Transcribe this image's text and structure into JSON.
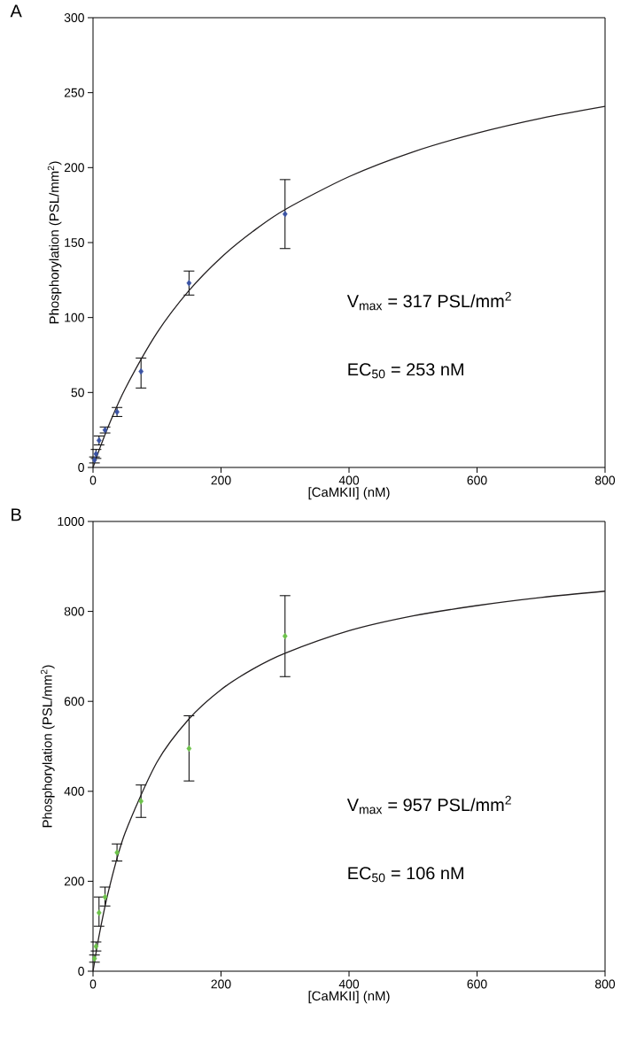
{
  "chart_data": [
    {
      "type": "scatter",
      "title": "A",
      "xlabel": "[CaMKII] (nM)",
      "ylabel": "Phosphorylation (PSL/mm$^{2}$)",
      "xlim": [
        0,
        800
      ],
      "ylim": [
        0,
        300
      ],
      "xticks": [
        0,
        200,
        400,
        600,
        800
      ],
      "yticks": [
        0,
        50,
        100,
        150,
        200,
        250,
        300
      ],
      "grid": false,
      "annotations": [
        "V$_{max}$ = 317 PSL/mm$^{2}$",
        "EC$_{50}$ = 253 nM"
      ],
      "series": [
        {
          "marker": "diamond",
          "color": "#3a53a4",
          "x": [
            2.3,
            4.7,
            9.4,
            18.8,
            37.5,
            75,
            150,
            300
          ],
          "values": [
            5,
            9,
            18,
            25,
            37,
            64,
            123,
            169
          ],
          "errors": [
            [
              3,
              7
            ],
            [
              6,
              12
            ],
            [
              15,
              21
            ],
            [
              23,
              27
            ],
            [
              34,
              40
            ],
            [
              53,
              73
            ],
            [
              115,
              131
            ],
            [
              146,
              192
            ]
          ]
        },
        {
          "type": "line",
          "marker": "none",
          "line_style": "solid",
          "color": "#231f20",
          "x": [
            0,
            10,
            25,
            50,
            100,
            150,
            200,
            250,
            300,
            400,
            500,
            600,
            700,
            800
          ],
          "values": [
            0,
            12.1,
            28.5,
            52.3,
            89.8,
            118,
            140,
            157.5,
            172,
            194,
            210.5,
            223,
            232.9,
            240.8
          ]
        }
      ]
    },
    {
      "type": "scatter",
      "title": "B",
      "xlabel": "[CaMKII] (nM)",
      "ylabel": "Phosphorylation (PSL/mm$^{2}$)",
      "xlim": [
        0,
        800
      ],
      "ylim": [
        0,
        1000
      ],
      "xticks": [
        0,
        200,
        400,
        600,
        800
      ],
      "yticks": [
        0,
        200,
        400,
        600,
        800,
        1000
      ],
      "grid": false,
      "annotations": [
        "V$_{max}$ = 957 PSL/mm$^{2}$",
        "EC$_{50}$ = 106 nM"
      ],
      "series": [
        {
          "marker": "diamond",
          "color": "#6cc24a",
          "x": [
            2.3,
            4.7,
            9.4,
            18.8,
            37.5,
            75,
            150,
            300
          ],
          "values": [
            28,
            55,
            130,
            165,
            264,
            378,
            495,
            745
          ],
          "errors": [
            [
              20,
              36
            ],
            [
              45,
              65
            ],
            [
              100,
              165
            ],
            [
              145,
              187
            ],
            [
              245,
              283
            ],
            [
              342,
              414
            ],
            [
              423,
              568
            ],
            [
              655,
              835
            ]
          ]
        },
        {
          "type": "line",
          "marker": "none",
          "line_style": "solid",
          "color": "#231f20",
          "x": [
            0,
            10,
            25,
            50,
            100,
            150,
            200,
            250,
            300,
            400,
            500,
            600,
            700,
            800
          ],
          "values": [
            0,
            83,
            183,
            307,
            465,
            561,
            626,
            672,
            707,
            757,
            790,
            813,
            831,
            845
          ]
        }
      ]
    }
  ]
}
